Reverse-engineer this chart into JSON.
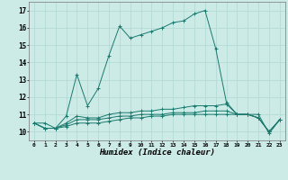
{
  "bg_color": "#cceae6",
  "grid_color": "#b0d8d3",
  "line_color": "#1a7a6e",
  "xlabel": "Humidex (Indice chaleur)",
  "xlim_min": -0.5,
  "xlim_max": 23.5,
  "ylim_min": 9.5,
  "ylim_max": 17.5,
  "xticks": [
    0,
    1,
    2,
    3,
    4,
    5,
    6,
    7,
    8,
    9,
    10,
    11,
    12,
    13,
    14,
    15,
    16,
    17,
    18,
    19,
    20,
    21,
    22,
    23
  ],
  "yticks": [
    10,
    11,
    12,
    13,
    14,
    15,
    16,
    17
  ],
  "line1_x": [
    0,
    1,
    2,
    3,
    4,
    5,
    6,
    7,
    8,
    9,
    10,
    11,
    12,
    13,
    14,
    15,
    16,
    17,
    18,
    19,
    20,
    21,
    22,
    23
  ],
  "line1_y": [
    10.5,
    10.5,
    10.2,
    10.9,
    13.3,
    11.5,
    12.5,
    14.4,
    16.1,
    15.4,
    15.6,
    15.8,
    16.0,
    16.3,
    16.4,
    16.8,
    17.0,
    14.8,
    11.7,
    11.0,
    11.0,
    11.0,
    9.9,
    10.7
  ],
  "line2_x": [
    0,
    1,
    2,
    3,
    4,
    5,
    6,
    7,
    8,
    9,
    10,
    11,
    12,
    13,
    14,
    15,
    16,
    17,
    18,
    19,
    20,
    21,
    22,
    23
  ],
  "line2_y": [
    10.5,
    10.2,
    10.2,
    10.5,
    10.9,
    10.8,
    10.8,
    11.0,
    11.1,
    11.1,
    11.2,
    11.2,
    11.3,
    11.3,
    11.4,
    11.5,
    11.5,
    11.5,
    11.6,
    11.0,
    11.0,
    10.8,
    10.0,
    10.7
  ],
  "line3_x": [
    0,
    1,
    2,
    3,
    4,
    5,
    6,
    7,
    8,
    9,
    10,
    11,
    12,
    13,
    14,
    15,
    16,
    17,
    18,
    19,
    20,
    21,
    22,
    23
  ],
  "line3_y": [
    10.5,
    10.2,
    10.2,
    10.4,
    10.7,
    10.7,
    10.7,
    10.8,
    10.9,
    10.9,
    11.0,
    11.0,
    11.0,
    11.1,
    11.1,
    11.1,
    11.2,
    11.2,
    11.2,
    11.0,
    11.0,
    10.8,
    10.0,
    10.7
  ],
  "line4_x": [
    0,
    1,
    2,
    3,
    4,
    5,
    6,
    7,
    8,
    9,
    10,
    11,
    12,
    13,
    14,
    15,
    16,
    17,
    18,
    19,
    20,
    21,
    22,
    23
  ],
  "line4_y": [
    10.5,
    10.2,
    10.2,
    10.3,
    10.5,
    10.5,
    10.5,
    10.6,
    10.7,
    10.8,
    10.8,
    10.9,
    10.9,
    11.0,
    11.0,
    11.0,
    11.0,
    11.0,
    11.0,
    11.0,
    11.0,
    10.8,
    10.0,
    10.7
  ]
}
